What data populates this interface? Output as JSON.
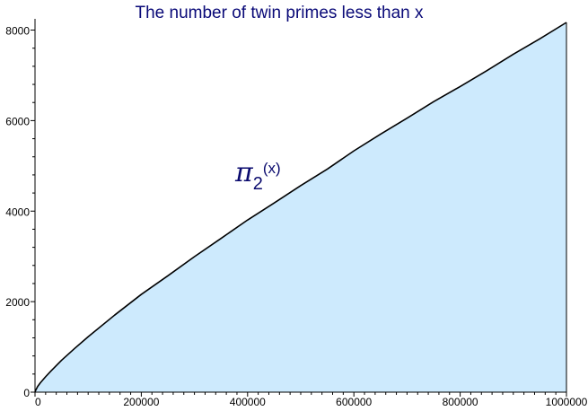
{
  "chart_data": {
    "type": "area",
    "title": "The number of twin primes less than x",
    "xlabel": "",
    "ylabel": "",
    "xlim": [
      0,
      1000000
    ],
    "ylim": [
      0,
      8169
    ],
    "grid": false,
    "fill_color": "#cdeafd",
    "line_color": "#000000",
    "title_color": "#0a0a78",
    "annotation": {
      "symbol": "π",
      "subscript": "2",
      "argument": "(x)",
      "color": "#0a0a6e",
      "anchor": [
        380000,
        4700
      ]
    },
    "x_ticks": [
      {
        "value": 0,
        "label": "0"
      },
      {
        "value": 200000,
        "label": "200000"
      },
      {
        "value": 400000,
        "label": "400000"
      },
      {
        "value": 600000,
        "label": "600000"
      },
      {
        "value": 800000,
        "label": "800000"
      },
      {
        "value": 1000000,
        "label": "1000000"
      }
    ],
    "y_ticks": [
      {
        "value": 0,
        "label": "0"
      },
      {
        "value": 2000,
        "label": "2000"
      },
      {
        "value": 4000,
        "label": "4000"
      },
      {
        "value": 6000,
        "label": "6000"
      },
      {
        "value": 8000,
        "label": "8000"
      }
    ],
    "series": [
      {
        "x": [
          0,
          1000,
          5000,
          10000,
          20000,
          30000,
          50000,
          75000,
          100000,
          150000,
          200000,
          250000,
          300000,
          350000,
          400000,
          450000,
          500000,
          550000,
          600000,
          650000,
          700000,
          750000,
          800000,
          850000,
          900000,
          950000,
          1000000
        ],
        "y": [
          0,
          35,
          126,
          205,
          342,
          467,
          705,
          970,
          1224,
          1704,
          2160,
          2571,
          2994,
          3397,
          3804,
          4180,
          4565,
          4928,
          5331,
          5700,
          6053,
          6418,
          6753,
          7102,
          7466,
          7809,
          8169
        ]
      }
    ]
  }
}
